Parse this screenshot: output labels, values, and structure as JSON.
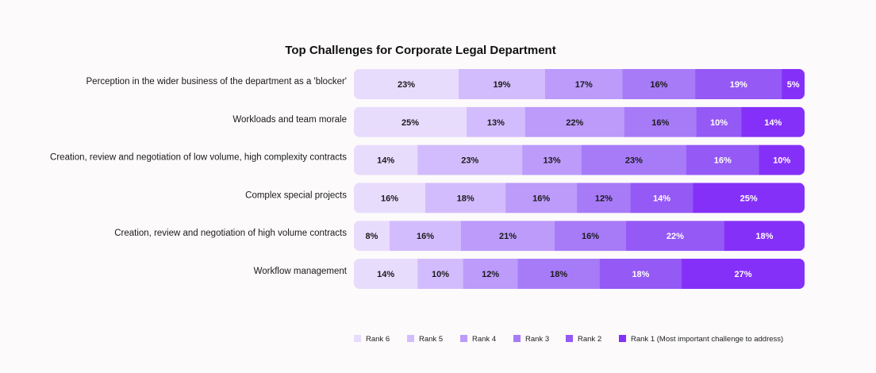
{
  "chart_data": {
    "type": "bar",
    "orientation": "horizontal",
    "stacked": true,
    "normalized": true,
    "title": "Top Challenges for Corporate Legal Department",
    "categories": [
      "Perception in the wider business of the department as a 'blocker'",
      "Workloads and team morale",
      "Creation, review and negotiation of low volume, high complexity contracts",
      "Complex special projects",
      "Creation, review and negotiation of high volume contracts",
      "Workflow management"
    ],
    "series": [
      {
        "name": "Rank 6",
        "color": "#e8dcfd",
        "label_color": "#1a1a1a",
        "values": [
          23,
          25,
          14,
          16,
          8,
          14
        ]
      },
      {
        "name": "Rank 5",
        "color": "#d3bcfd",
        "label_color": "#1a1a1a",
        "values": [
          19,
          13,
          23,
          18,
          16,
          10
        ]
      },
      {
        "name": "Rank 4",
        "color": "#bc9bfb",
        "label_color": "#1a1a1a",
        "values": [
          17,
          22,
          13,
          16,
          21,
          12
        ]
      },
      {
        "name": "Rank 3",
        "color": "#a77bf8",
        "label_color": "#1a1a1a",
        "values": [
          16,
          16,
          23,
          12,
          16,
          18
        ]
      },
      {
        "name": "Rank 2",
        "color": "#9559f6",
        "label_color": "#ffffff",
        "values": [
          19,
          10,
          16,
          14,
          22,
          18
        ]
      },
      {
        "name": "Rank 1 (Most important challenge to address)",
        "color": "#8530f8",
        "label_color": "#ffffff",
        "values": [
          5,
          14,
          10,
          25,
          18,
          27
        ]
      }
    ],
    "value_suffix": "%",
    "xlim": [
      0,
      100
    ],
    "grid": false,
    "legend": "bottom-right"
  }
}
